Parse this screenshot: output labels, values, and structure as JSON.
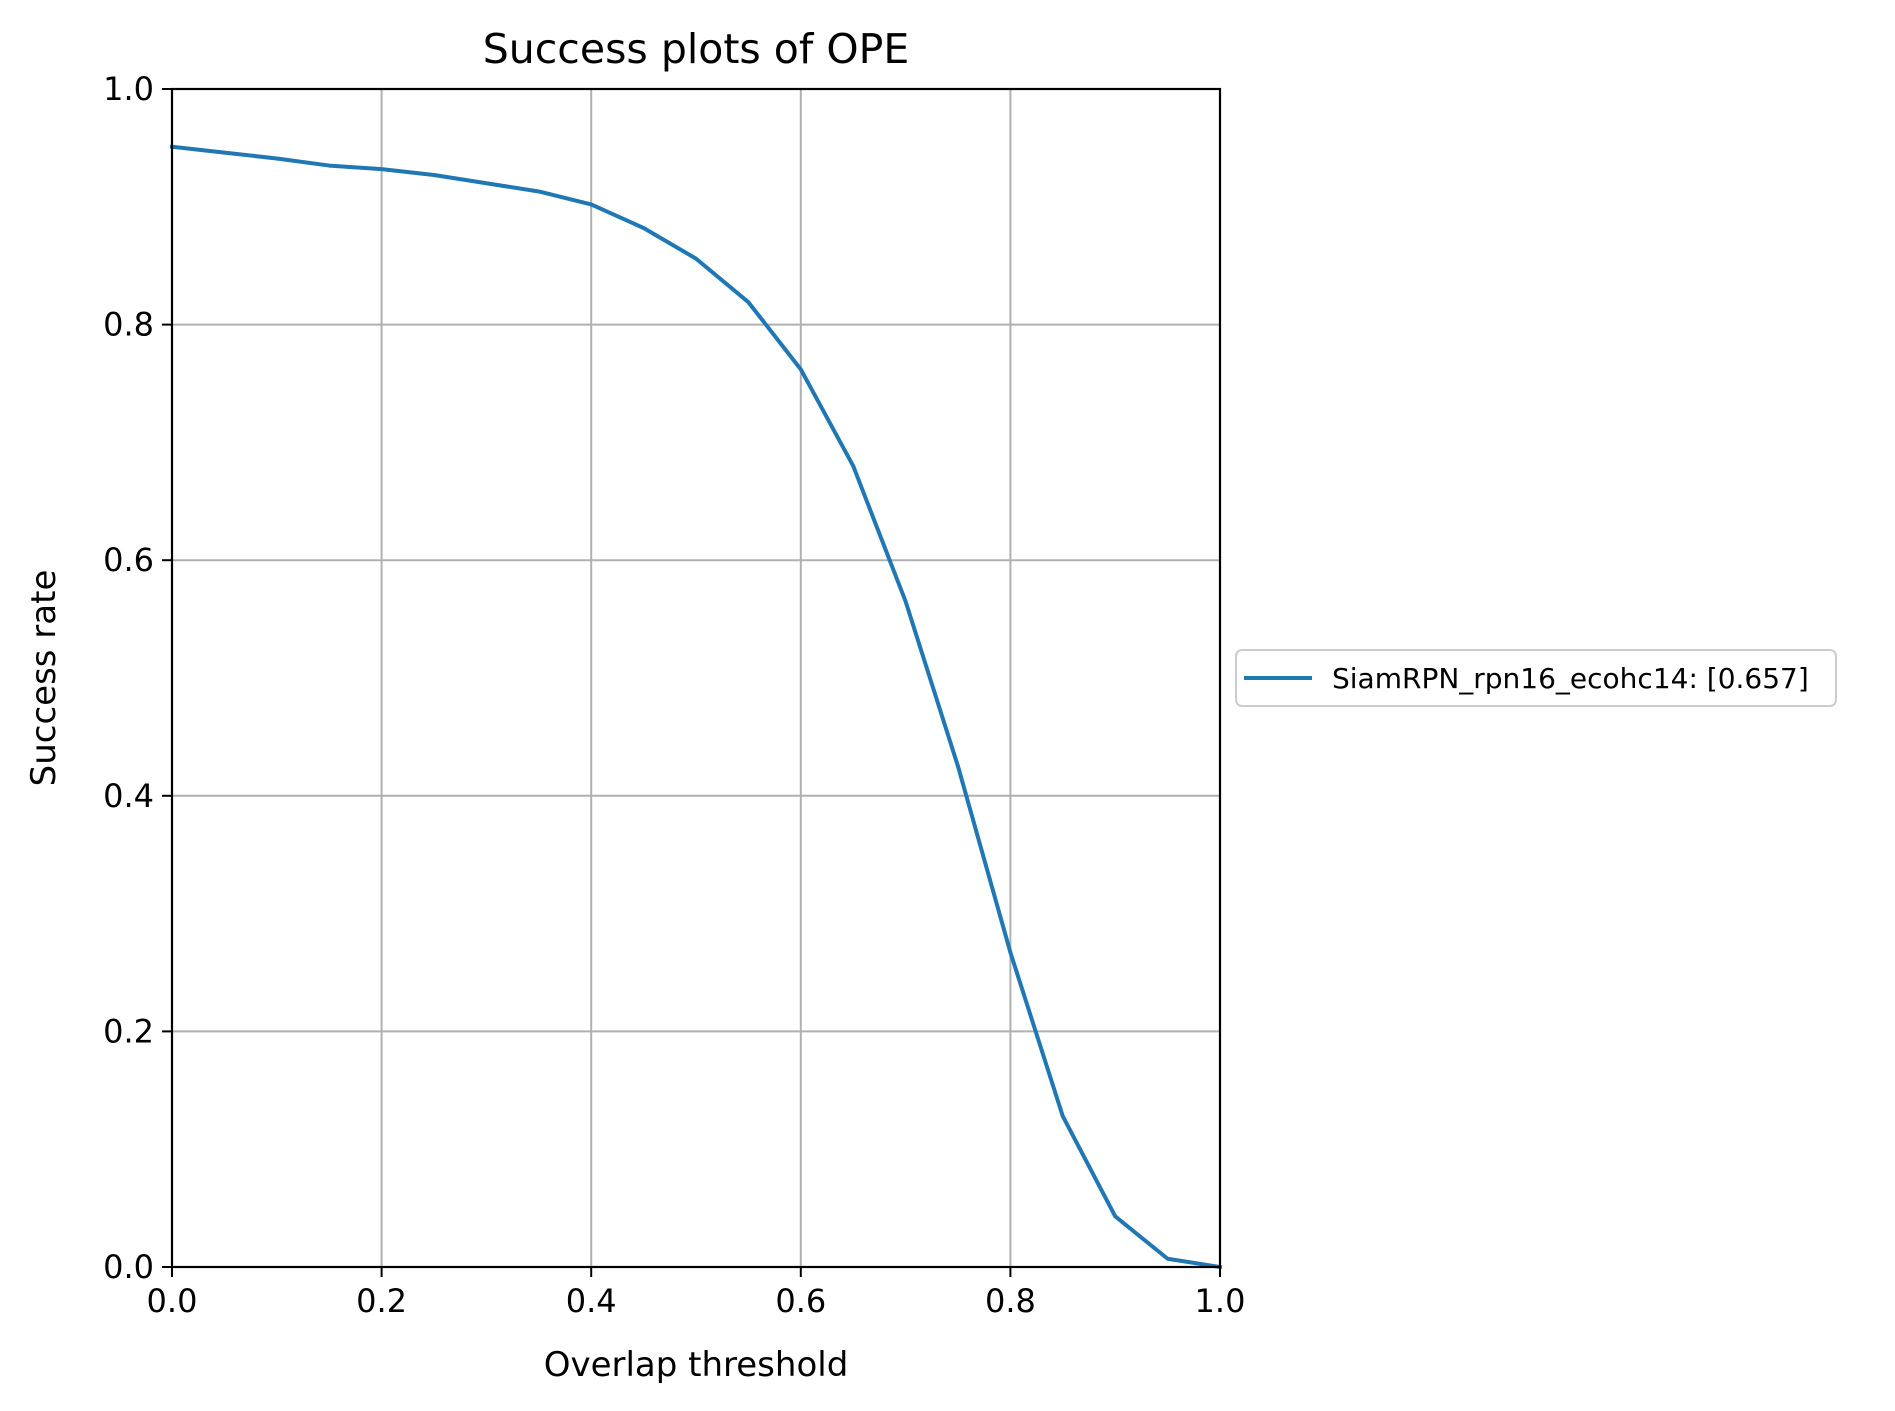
{
  "chart_data": {
    "type": "line",
    "title": "Success plots of OPE",
    "xlabel": "Overlap threshold",
    "ylabel": "Success rate",
    "xlim": [
      0.0,
      1.0
    ],
    "ylim": [
      0.0,
      1.0
    ],
    "xticks": [
      "0.0",
      "0.2",
      "0.4",
      "0.6",
      "0.8",
      "1.0"
    ],
    "yticks": [
      "0.0",
      "0.2",
      "0.4",
      "0.6",
      "0.8",
      "1.0"
    ],
    "grid": true,
    "legend_position": "right",
    "series": [
      {
        "name": "SiamRPN_rpn16_ecohc14: [0.657]",
        "color": "#1f77b4",
        "x": [
          0.0,
          0.05,
          0.1,
          0.15,
          0.2,
          0.25,
          0.3,
          0.35,
          0.4,
          0.45,
          0.5,
          0.55,
          0.6,
          0.65,
          0.7,
          0.75,
          0.8,
          0.85,
          0.9,
          0.95,
          1.0
        ],
        "y": [
          0.951,
          0.946,
          0.941,
          0.935,
          0.932,
          0.927,
          0.92,
          0.913,
          0.902,
          0.882,
          0.856,
          0.819,
          0.762,
          0.68,
          0.565,
          0.425,
          0.267,
          0.128,
          0.043,
          0.007,
          0.0
        ]
      }
    ]
  }
}
